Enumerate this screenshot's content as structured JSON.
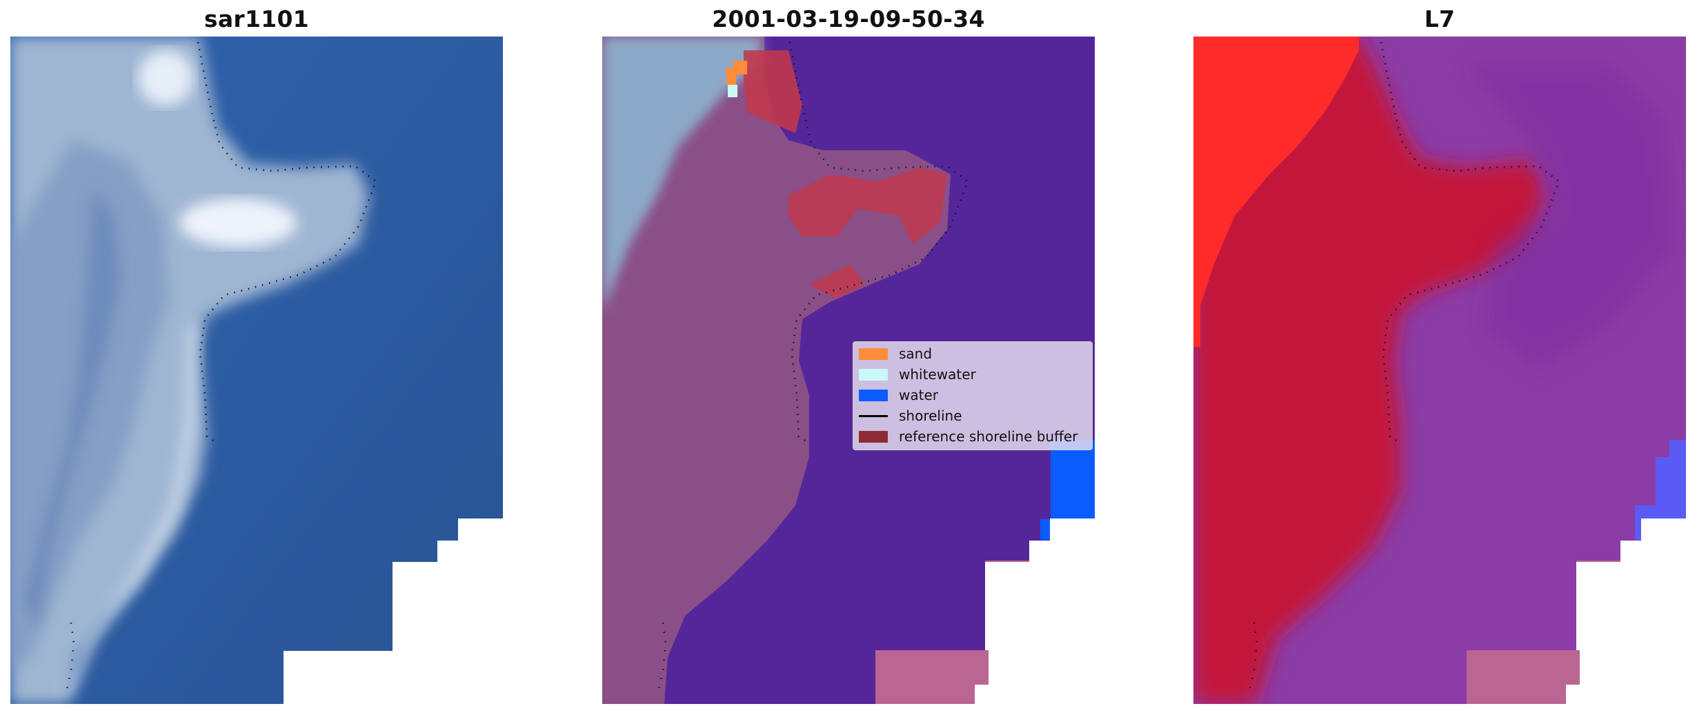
{
  "panels": [
    {
      "title": "sar1101"
    },
    {
      "title": "2001-03-19-09-50-34"
    },
    {
      "title": "L7"
    }
  ],
  "legend": {
    "items": [
      {
        "label": "sand",
        "color": "#ff8c3a"
      },
      {
        "label": "whitewater",
        "color": "#c8f8f8"
      },
      {
        "label": "water",
        "color": "#0a5cff"
      },
      {
        "label": "shoreline",
        "color": "#000000"
      },
      {
        "label": "reference shoreline buffer",
        "color": "#8e2a35"
      }
    ]
  },
  "colors": {
    "ocean_blue": "#2f5d9e",
    "land_pale": "#a9bdd4",
    "classified_water_purple": "#55269a",
    "classified_land_mauve": "#8a4f86",
    "probability_red": "#c3143a",
    "probability_purple": "#8b3ca6",
    "no_data_pink": "#bb6593"
  }
}
